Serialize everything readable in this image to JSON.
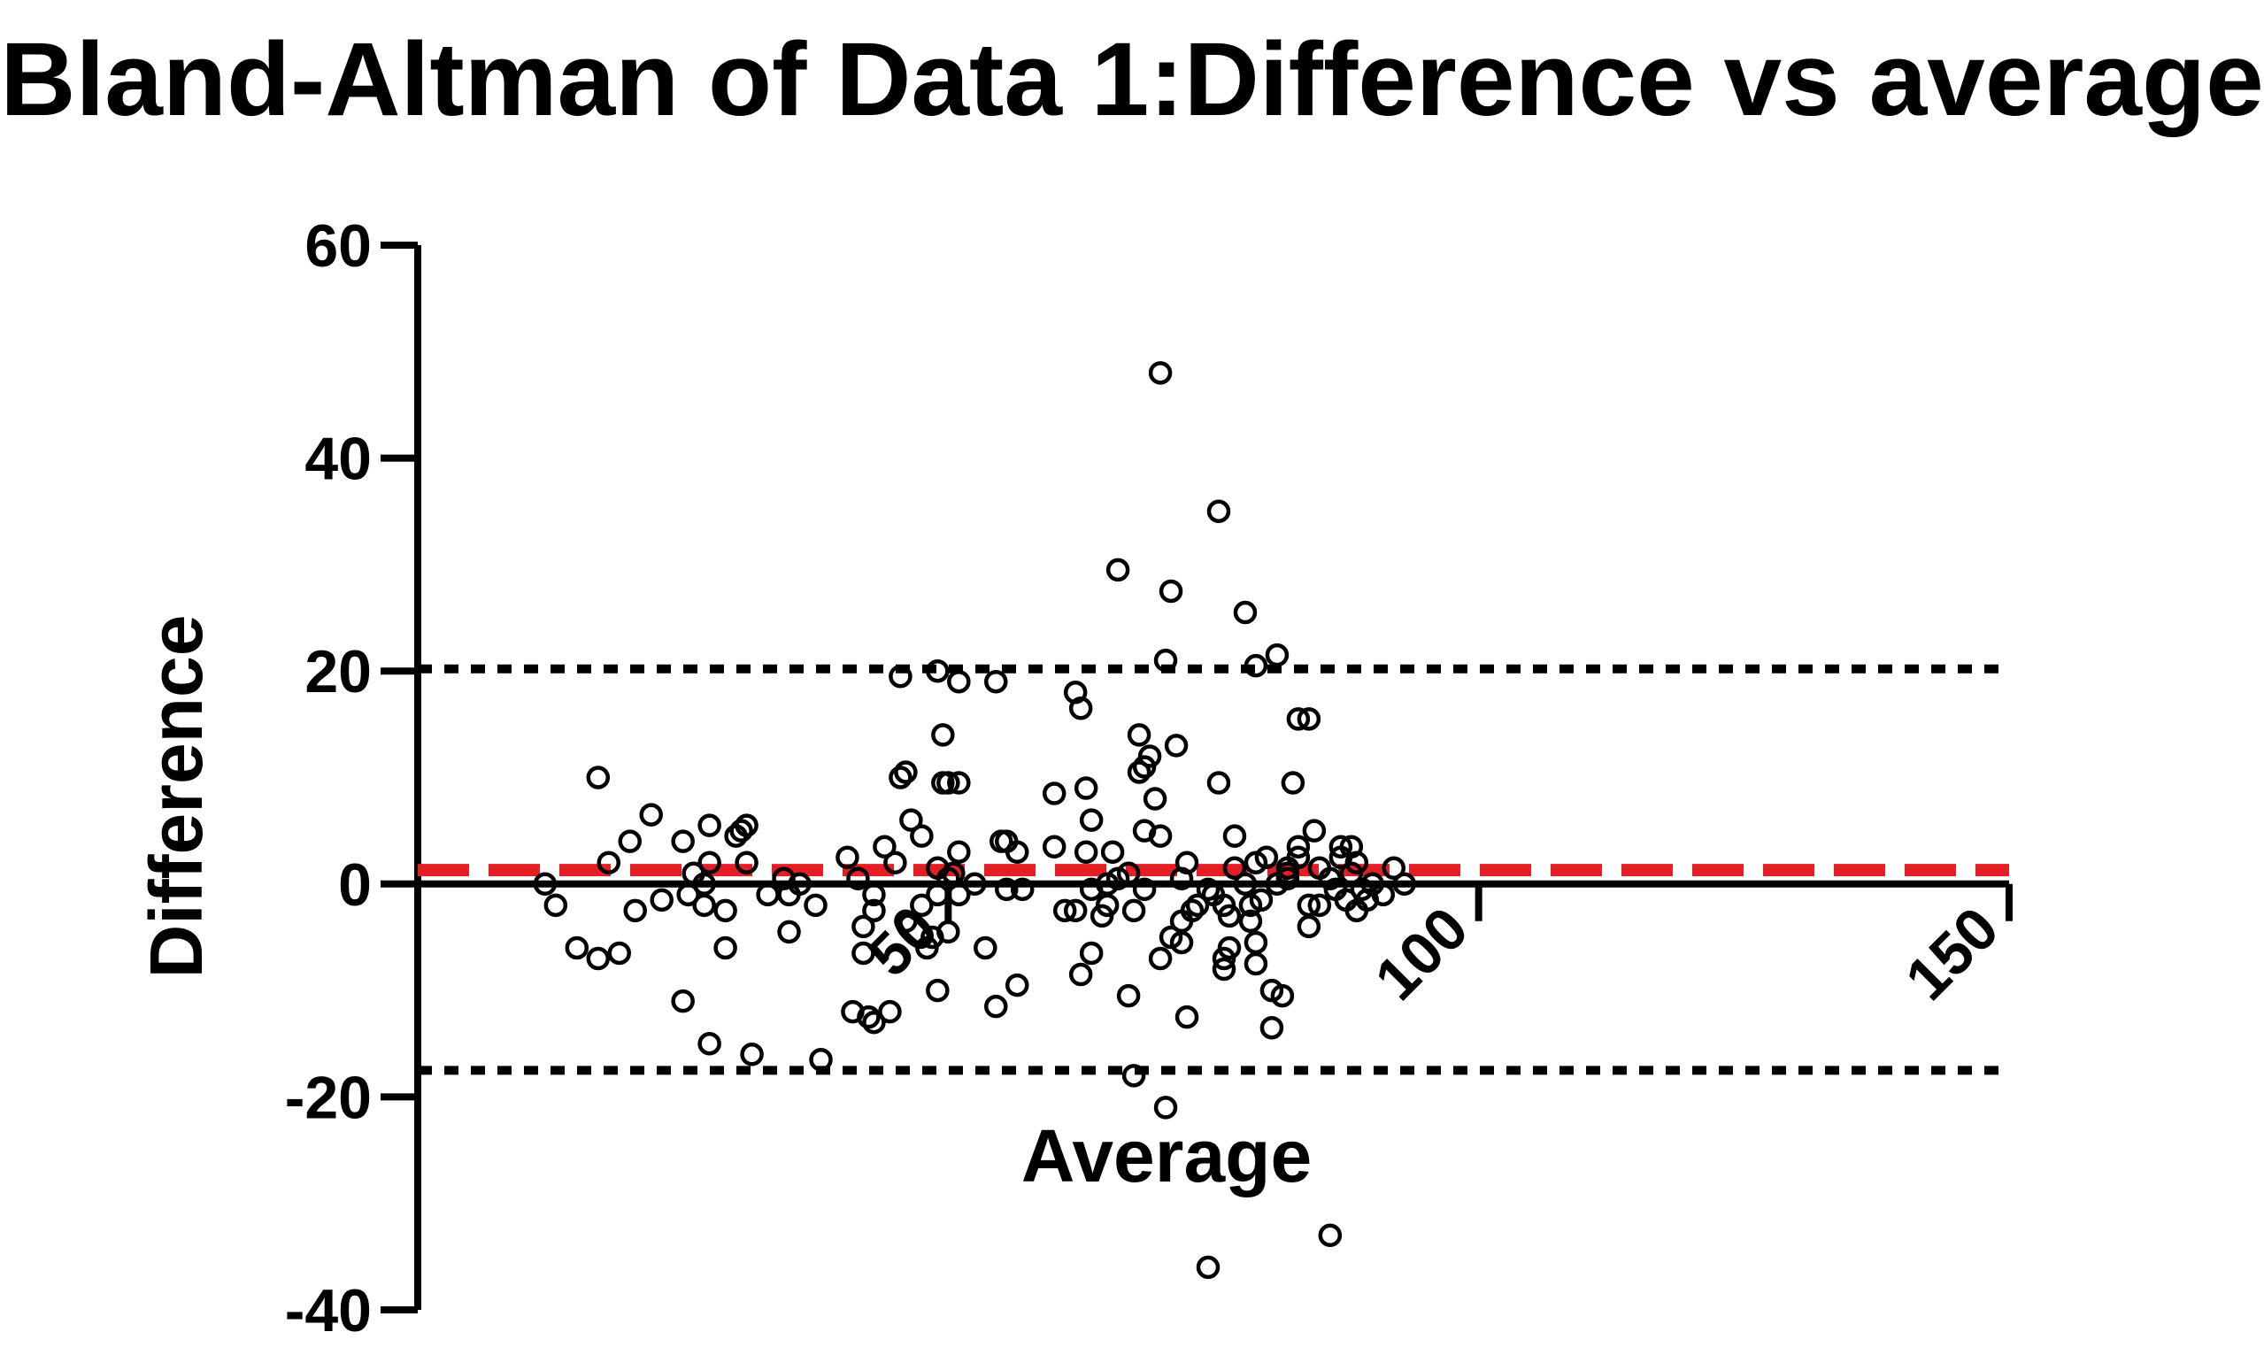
{
  "chart_data": {
    "type": "scatter",
    "title": "Bland-Altman of Data 1:Difference vs average",
    "xlabel": "Average",
    "ylabel": "Difference",
    "xlim": [
      0,
      150
    ],
    "ylim": [
      -40,
      60
    ],
    "x_ticks": [
      {
        "value": 50,
        "label": "50"
      },
      {
        "value": 100,
        "label": "100"
      },
      {
        "value": 150,
        "label": "150"
      }
    ],
    "y_ticks": [
      {
        "value": 60,
        "label": "60"
      },
      {
        "value": 40,
        "label": "40"
      },
      {
        "value": 20,
        "label": "20"
      },
      {
        "value": 0,
        "label": "0"
      },
      {
        "value": -20,
        "label": "-20"
      },
      {
        "value": -40,
        "label": "-40"
      }
    ],
    "reference_lines": [
      {
        "name": "upper-limit-of-agreement",
        "value": 20.2,
        "color": "#000000",
        "style": "dotted"
      },
      {
        "name": "mean-difference",
        "value": 1.3,
        "color": "#e31e24",
        "style": "dashed"
      },
      {
        "name": "lower-limit-of-agreement",
        "value": -17.5,
        "color": "#000000",
        "style": "dotted"
      }
    ],
    "series": [
      {
        "name": "Difference",
        "marker": "open-circle",
        "color": "#000000",
        "points": [
          [
            12,
            0
          ],
          [
            13,
            -2
          ],
          [
            15,
            -6
          ],
          [
            17,
            10
          ],
          [
            17,
            -7
          ],
          [
            18,
            2
          ],
          [
            19,
            -6.5
          ],
          [
            20,
            4
          ],
          [
            20.5,
            -2.5
          ],
          [
            22,
            6.5
          ],
          [
            23,
            -1.5
          ],
          [
            25,
            4
          ],
          [
            25,
            -11
          ],
          [
            25.5,
            -1
          ],
          [
            26,
            1
          ],
          [
            27,
            0
          ],
          [
            27,
            -2
          ],
          [
            27.5,
            2
          ],
          [
            27.5,
            5.5
          ],
          [
            27.5,
            -15
          ],
          [
            29,
            -2.5
          ],
          [
            29,
            -6
          ],
          [
            30,
            4.5
          ],
          [
            30.5,
            5
          ],
          [
            31,
            5.5
          ],
          [
            31,
            2
          ],
          [
            31.5,
            -16
          ],
          [
            33,
            -1
          ],
          [
            34.5,
            0.5
          ],
          [
            35,
            -1
          ],
          [
            35,
            -4.5
          ],
          [
            36,
            0
          ],
          [
            37.5,
            -2
          ],
          [
            38,
            -16.5
          ],
          [
            40.5,
            2.5
          ],
          [
            41,
            -12
          ],
          [
            41.5,
            0.5
          ],
          [
            42,
            -4
          ],
          [
            42,
            -6.5
          ],
          [
            42.5,
            -12.5
          ],
          [
            43,
            -1
          ],
          [
            43,
            -2.5
          ],
          [
            43,
            -13
          ],
          [
            44,
            3.5
          ],
          [
            44.5,
            -12
          ],
          [
            45,
            2
          ],
          [
            45.5,
            19.5
          ],
          [
            45.5,
            10
          ],
          [
            46,
            10.5
          ],
          [
            46,
            -3.5
          ],
          [
            46.5,
            6
          ],
          [
            47.5,
            4.5
          ],
          [
            47.5,
            -2
          ],
          [
            48,
            -6
          ],
          [
            48.5,
            -5
          ],
          [
            49,
            -1
          ],
          [
            49,
            1.5
          ],
          [
            49,
            20
          ],
          [
            49,
            -10
          ],
          [
            49.5,
            14
          ],
          [
            49.5,
            9.5
          ],
          [
            50,
            9.5
          ],
          [
            50,
            0.5
          ],
          [
            50,
            -4.5
          ],
          [
            50.5,
            1
          ],
          [
            51,
            3
          ],
          [
            51,
            -1
          ],
          [
            51,
            19
          ],
          [
            51,
            9.5
          ],
          [
            52.5,
            0
          ],
          [
            53.5,
            -6
          ],
          [
            54.5,
            19
          ],
          [
            54.5,
            -11.5
          ],
          [
            55,
            4
          ],
          [
            55.5,
            4
          ],
          [
            55.5,
            -0.5
          ],
          [
            56.5,
            3
          ],
          [
            56.5,
            -9.5
          ],
          [
            57,
            -0.5
          ],
          [
            60,
            8.5
          ],
          [
            60,
            3.5
          ],
          [
            61,
            -2.5
          ],
          [
            62,
            18
          ],
          [
            62,
            -2.5
          ],
          [
            62.5,
            -8.5
          ],
          [
            62.5,
            16.5
          ],
          [
            63,
            9
          ],
          [
            63,
            3
          ],
          [
            63.5,
            6
          ],
          [
            63.5,
            -6.5
          ],
          [
            63.5,
            -0.5
          ],
          [
            64.5,
            -3
          ],
          [
            65,
            0
          ],
          [
            65,
            -2
          ],
          [
            65.5,
            3
          ],
          [
            66,
            29.5
          ],
          [
            66,
            0.5
          ],
          [
            67,
            1
          ],
          [
            67,
            -10.5
          ],
          [
            67.5,
            -2.5
          ],
          [
            67.5,
            -18
          ],
          [
            68,
            14
          ],
          [
            68,
            10.5
          ],
          [
            68.5,
            11
          ],
          [
            68.5,
            -0.5
          ],
          [
            68.5,
            5
          ],
          [
            69,
            12
          ],
          [
            69.5,
            8
          ],
          [
            70,
            -7
          ],
          [
            70,
            4.5
          ],
          [
            70,
            48
          ],
          [
            70.5,
            21
          ],
          [
            70.5,
            -21
          ],
          [
            71,
            -5
          ],
          [
            71,
            27.5
          ],
          [
            71.5,
            13
          ],
          [
            72,
            -3.5
          ],
          [
            72,
            0.5
          ],
          [
            72,
            -5.5
          ],
          [
            72.5,
            2
          ],
          [
            72.5,
            -12.5
          ],
          [
            73,
            -2.5
          ],
          [
            73.5,
            -2
          ],
          [
            74.5,
            -0.5
          ],
          [
            74.5,
            -36
          ],
          [
            75,
            -1
          ],
          [
            75.5,
            9.5
          ],
          [
            75.5,
            35
          ],
          [
            76,
            -2
          ],
          [
            76,
            -7
          ],
          [
            76,
            -8
          ],
          [
            76.5,
            -3
          ],
          [
            76.5,
            -6
          ],
          [
            77,
            4.5
          ],
          [
            77,
            1.5
          ],
          [
            78,
            0
          ],
          [
            78,
            25.5
          ],
          [
            78.5,
            -2
          ],
          [
            78.5,
            -3.5
          ],
          [
            79,
            2
          ],
          [
            79,
            -5.5
          ],
          [
            79,
            -7.5
          ],
          [
            79,
            20.5
          ],
          [
            79.5,
            -1.5
          ],
          [
            80,
            2.5
          ],
          [
            80.5,
            -13.5
          ],
          [
            80.5,
            -10
          ],
          [
            81,
            21.5
          ],
          [
            81,
            0
          ],
          [
            81.5,
            -10.5
          ],
          [
            82,
            1
          ],
          [
            82,
            1.5
          ],
          [
            82,
            0.5
          ],
          [
            82.5,
            9.5
          ],
          [
            83,
            15.5
          ],
          [
            83,
            3.5
          ],
          [
            83,
            2.5
          ],
          [
            84,
            -2
          ],
          [
            84,
            -4
          ],
          [
            84,
            15.5
          ],
          [
            84.5,
            5
          ],
          [
            85,
            -2
          ],
          [
            85,
            1.5
          ],
          [
            86,
            0.5
          ],
          [
            86.5,
            -0.5
          ],
          [
            87,
            3.5
          ],
          [
            87,
            2.5
          ],
          [
            87.5,
            -1.5
          ],
          [
            88,
            3.5
          ],
          [
            88,
            1
          ],
          [
            88.5,
            2
          ],
          [
            88.5,
            -2.5
          ],
          [
            89,
            -0.5
          ],
          [
            89.5,
            -1.5
          ],
          [
            90,
            0
          ],
          [
            91,
            -1
          ],
          [
            92,
            1.5
          ],
          [
            93,
            0
          ],
          [
            86,
            -33
          ]
        ]
      }
    ]
  }
}
